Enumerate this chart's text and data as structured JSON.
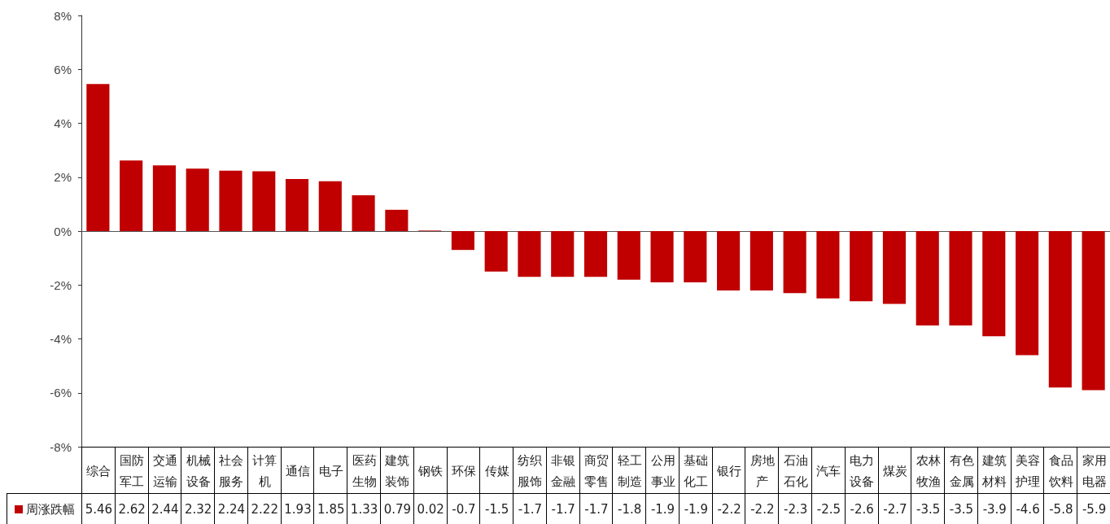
{
  "chart_data": {
    "type": "bar",
    "categories": [
      "综合",
      "国防军工",
      "交通运输",
      "机械设备",
      "社会服务",
      "计算机",
      "通信",
      "电子",
      "医药生物",
      "建筑装饰",
      "钢铁",
      "环保",
      "传媒",
      "纺织服饰",
      "非银金融",
      "商贸零售",
      "轻工制造",
      "公用事业",
      "基础化工",
      "银行",
      "房地产",
      "石油石化",
      "汽车",
      "电力设备",
      "煤炭",
      "农林牧渔",
      "有色金属",
      "建筑材料",
      "美容护理",
      "食品饮料",
      "家用电器"
    ],
    "series": [
      {
        "name": "周涨跌幅",
        "color": "#c00000",
        "values": [
          5.46,
          2.62,
          2.44,
          2.32,
          2.24,
          2.22,
          1.93,
          1.85,
          1.33,
          0.79,
          0.02,
          -0.7,
          -1.5,
          -1.7,
          -1.7,
          -1.7,
          -1.8,
          -1.9,
          -1.9,
          -2.2,
          -2.2,
          -2.3,
          -2.5,
          -2.6,
          -2.7,
          -3.5,
          -3.5,
          -3.9,
          -4.6,
          -5.8,
          -5.9
        ]
      }
    ],
    "ylim": [
      -8,
      8
    ],
    "yticks": [
      {
        "value": -8,
        "label": "-8%"
      },
      {
        "value": -6,
        "label": "-6%"
      },
      {
        "value": -4,
        "label": "-4%"
      },
      {
        "value": -2,
        "label": "-2%"
      },
      {
        "value": 0,
        "label": "0%"
      },
      {
        "value": 2,
        "label": "2%"
      },
      {
        "value": 4,
        "label": "4%"
      },
      {
        "value": 6,
        "label": "6%"
      },
      {
        "value": 8,
        "label": "8%"
      }
    ],
    "legend": "bottom left",
    "data_labels": true
  }
}
